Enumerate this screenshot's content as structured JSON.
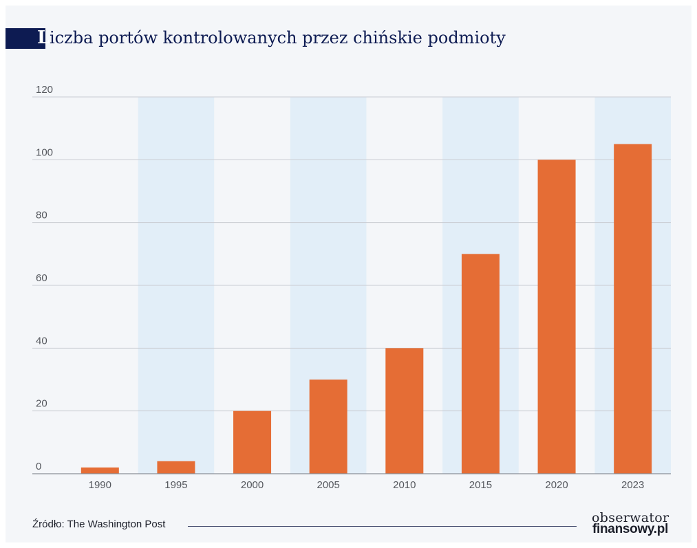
{
  "title": {
    "initial": "L",
    "rest": "iczba portów kontrolowanych przez chińskie podmioty"
  },
  "colors": {
    "bar": "#e56d35",
    "band": "#e2eef8",
    "grid": "#c9ccd2",
    "axis": "#8a8f99",
    "title": "#0d1b52"
  },
  "chart_data": {
    "type": "bar",
    "title": "Liczba portów kontrolowanych przez chińskie podmioty",
    "xlabel": "",
    "ylabel": "",
    "categories": [
      "1990",
      "1995",
      "2000",
      "2005",
      "2010",
      "2015",
      "2020",
      "2023"
    ],
    "values": [
      2,
      4,
      20,
      30,
      40,
      70,
      100,
      105
    ],
    "ylim": [
      0,
      120
    ],
    "yticks": [
      0,
      20,
      40,
      60,
      80,
      100,
      120
    ],
    "grid": true,
    "alternating_bands": true
  },
  "footer": {
    "source": "Źródło: The Washington Post",
    "logo_top": "obserwator",
    "logo_bottom": "finansowy.pl"
  }
}
